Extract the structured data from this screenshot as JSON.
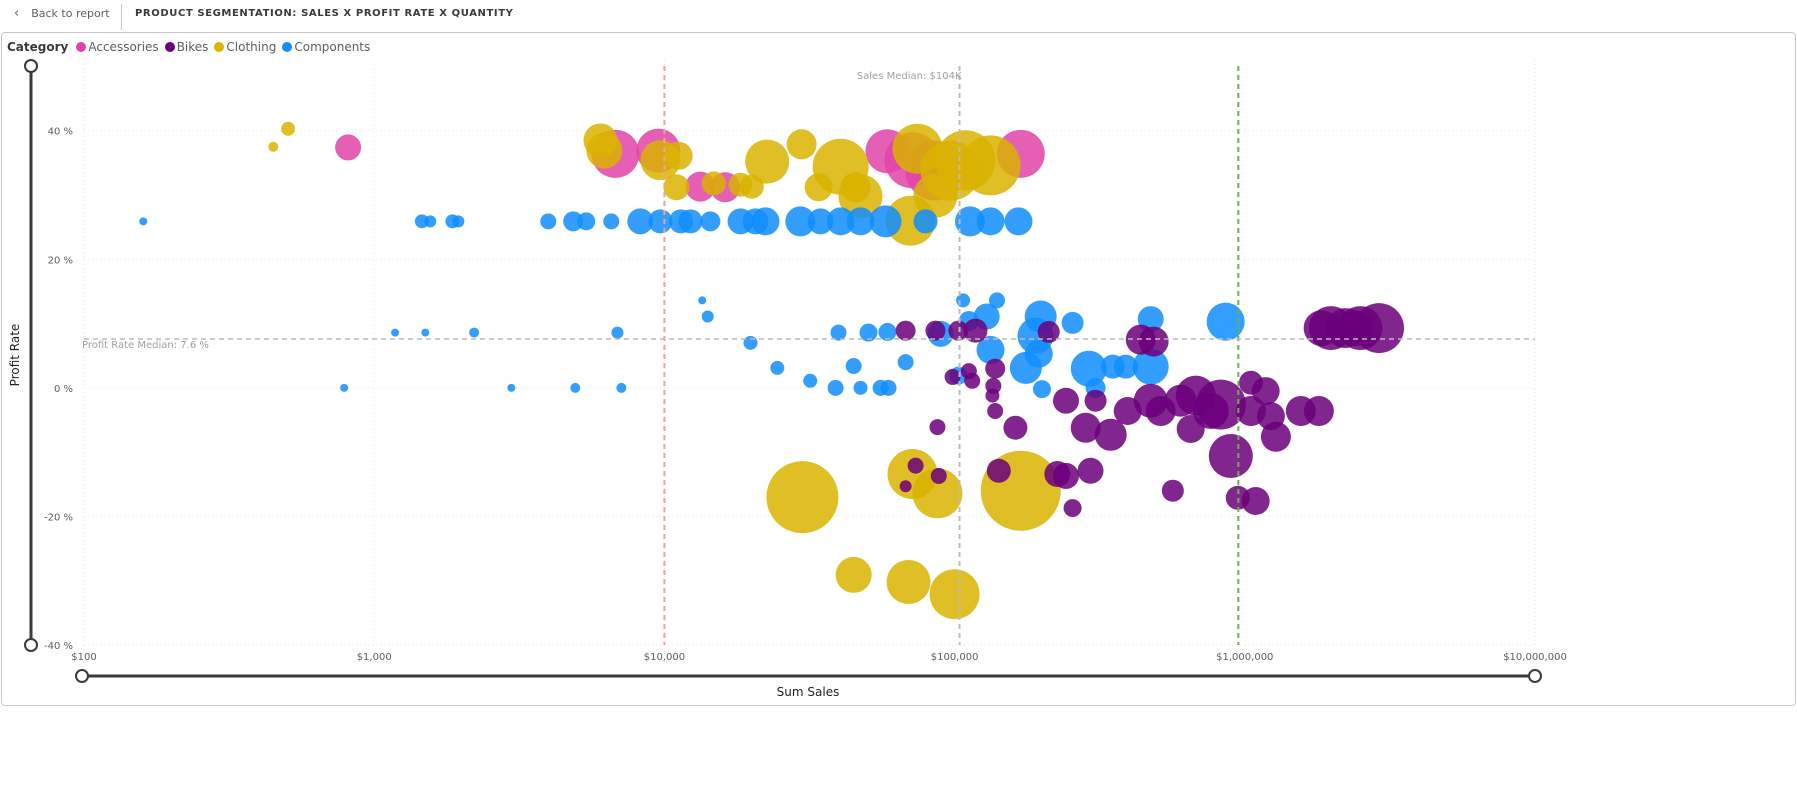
{
  "header": {
    "back_label": "Back to report",
    "back_icon": "chevron-left-icon",
    "title": "PRODUCT SEGMENTATION: SALES X PROFIT RATE X QUANTITY"
  },
  "legend": {
    "title": "Category",
    "items": [
      {
        "label": "Accessories",
        "color": "#E044A7"
      },
      {
        "label": "Bikes",
        "color": "#6B007B"
      },
      {
        "label": "Clothing",
        "color": "#D9B300"
      },
      {
        "label": "Components",
        "color": "#118DFF"
      }
    ]
  },
  "chart_data": {
    "type": "scatter",
    "xlabel": "Sum Sales",
    "ylabel": "Profit Rate",
    "x_scale": "log",
    "xlim": [
      100,
      10000000
    ],
    "ylim": [
      -40,
      51
    ],
    "x_ticks": [
      {
        "v": 100,
        "label": "$100"
      },
      {
        "v": 1000,
        "label": "$1,000"
      },
      {
        "v": 10000,
        "label": "$10,000"
      },
      {
        "v": 100000,
        "label": "$100,000"
      },
      {
        "v": 1000000,
        "label": "$1,000,000"
      },
      {
        "v": 10000000,
        "label": "$10,000,000"
      }
    ],
    "y_ticks": [
      {
        "v": 40,
        "label": "40 %"
      },
      {
        "v": 20,
        "label": "20 %"
      },
      {
        "v": 0,
        "label": "0 %"
      },
      {
        "v": -20,
        "label": "-20 %"
      },
      {
        "v": -40,
        "label": "-40 %"
      }
    ],
    "grid": true,
    "size_field": "Quantity",
    "reference_lines": [
      {
        "axis": "x",
        "value": 10000,
        "color": "#F0A58A",
        "label": ""
      },
      {
        "axis": "x",
        "value": 104000,
        "color": "#BEBBB8",
        "label": "Sales Median: $104K"
      },
      {
        "axis": "x",
        "value": 950000,
        "color": "#6AB04C",
        "label": ""
      },
      {
        "axis": "y",
        "value": 7.6,
        "color": "#BEBBB8",
        "label": "Profit Rate Median: 7.6 %"
      }
    ],
    "point_format": [
      "sales",
      "profit_rate",
      "quantity"
    ],
    "series": [
      {
        "name": "Accessories",
        "color": "#E044A7",
        "points": [
          [
            813,
            37.4,
            169
          ],
          [
            6780,
            36.4,
            576
          ],
          [
            9530,
            36.9,
            484
          ],
          [
            13300,
            31.3,
            225
          ],
          [
            16200,
            31.2,
            225
          ],
          [
            58700,
            36.8,
            484
          ],
          [
            71600,
            35.4,
            784
          ],
          [
            85900,
            33.8,
            900
          ],
          [
            169000,
            36.4,
            576
          ]
        ]
      },
      {
        "name": "Clothing",
        "color": "#D9B300",
        "points": [
          [
            449,
            37.5,
            25
          ],
          [
            505,
            40.3,
            49
          ],
          [
            6020,
            38.5,
            289
          ],
          [
            6210,
            36.9,
            324
          ],
          [
            9690,
            35.4,
            400
          ],
          [
            11200,
            36.1,
            196
          ],
          [
            11000,
            31.2,
            169
          ],
          [
            14800,
            31.8,
            144
          ],
          [
            18300,
            31.6,
            144
          ],
          [
            20000,
            31.3,
            144
          ],
          [
            22600,
            35.2,
            484
          ],
          [
            29700,
            37.9,
            225
          ],
          [
            34000,
            31.2,
            196
          ],
          [
            40500,
            34.4,
            784
          ],
          [
            45600,
            31.2,
            225
          ],
          [
            47400,
            29.8,
            484
          ],
          [
            74500,
            37.2,
            625
          ],
          [
            70500,
            26,
            625
          ],
          [
            85900,
            29.9,
            484
          ],
          [
            96900,
            33.8,
            900
          ],
          [
            109000,
            35.4,
            900
          ],
          [
            133000,
            34.6,
            900
          ],
          [
            29900,
            -17,
            1296
          ],
          [
            71600,
            -13.4,
            625
          ],
          [
            87300,
            -16.4,
            625
          ],
          [
            169000,
            -16,
            1600
          ],
          [
            44900,
            -29.1,
            324
          ],
          [
            69400,
            -30.2,
            484
          ],
          [
            100000,
            -32.1,
            625
          ]
        ]
      },
      {
        "name": "Components",
        "color": "#118DFF",
        "points": [
          [
            160,
            25.9,
            16
          ],
          [
            788,
            0,
            16
          ],
          [
            1180,
            8.6,
            16
          ],
          [
            1500,
            8.6,
            16
          ],
          [
            2210,
            8.6,
            25
          ],
          [
            2970,
            0,
            16
          ],
          [
            4930,
            0,
            25
          ],
          [
            7110,
            0,
            25
          ],
          [
            6890,
            8.6,
            36
          ],
          [
            13500,
            13.6,
            16
          ],
          [
            14100,
            11.1,
            36
          ],
          [
            19800,
            7,
            49
          ],
          [
            24500,
            3.1,
            49
          ],
          [
            31800,
            1.1,
            49
          ],
          [
            1460,
            25.9,
            49
          ],
          [
            1560,
            25.9,
            36
          ],
          [
            1860,
            25.9,
            49
          ],
          [
            1950,
            25.9,
            36
          ],
          [
            3980,
            25.9,
            64
          ],
          [
            4850,
            25.9,
            100
          ],
          [
            5380,
            25.9,
            81
          ],
          [
            6560,
            25.9,
            64
          ],
          [
            8260,
            25.9,
            169
          ],
          [
            9690,
            25.9,
            144
          ],
          [
            11400,
            25.9,
            144
          ],
          [
            12300,
            25.9,
            144
          ],
          [
            14400,
            25.9,
            100
          ],
          [
            18300,
            25.9,
            169
          ],
          [
            20600,
            25.9,
            169
          ],
          [
            22300,
            25.9,
            196
          ],
          [
            29400,
            25.9,
            225
          ],
          [
            34500,
            25.9,
            169
          ],
          [
            40500,
            25.9,
            196
          ],
          [
            47400,
            25.9,
            196
          ],
          [
            57800,
            25.9,
            256
          ],
          [
            79400,
            25.9,
            144
          ],
          [
            113000,
            25.9,
            225
          ],
          [
            133000,
            25.9,
            196
          ],
          [
            166000,
            25.9,
            196
          ],
          [
            39800,
            8.6,
            64
          ],
          [
            50500,
            8.6,
            81
          ],
          [
            58700,
            8.7,
            81
          ],
          [
            44900,
            3.4,
            64
          ],
          [
            38900,
            0,
            64
          ],
          [
            47400,
            0,
            49
          ],
          [
            55600,
            0,
            64
          ],
          [
            59200,
            0,
            64
          ],
          [
            67800,
            4,
            64
          ],
          [
            89500,
            8.4,
            169
          ],
          [
            103000,
            1.9,
            81
          ],
          [
            107000,
            13.6,
            49
          ],
          [
            112000,
            10.4,
            100
          ],
          [
            129000,
            11.1,
            169
          ],
          [
            133000,
            5.9,
            196
          ],
          [
            140000,
            13.6,
            64
          ],
          [
            176000,
            3.1,
            256
          ],
          [
            195000,
            5.3,
            196
          ],
          [
            198000,
            11.1,
            256
          ],
          [
            190000,
            8.1,
            324
          ],
          [
            200000,
            -0.2,
            81
          ],
          [
            255000,
            10.1,
            121
          ],
          [
            290000,
            3,
            324
          ],
          [
            351000,
            3.3,
            144
          ],
          [
            389000,
            3.3,
            144
          ],
          [
            474000,
            3.3,
            324
          ],
          [
            474000,
            10.7,
            169
          ],
          [
            859000,
            10.3,
            361
          ],
          [
            306000,
            0,
            100
          ]
        ]
      },
      {
        "name": "Bikes",
        "color": "#6B007B",
        "points": [
          [
            67800,
            8.9,
            100
          ],
          [
            85900,
            8.9,
            100
          ],
          [
            103000,
            8.9,
            100
          ],
          [
            118000,
            8.9,
            144
          ],
          [
            211000,
            8.7,
            121
          ],
          [
            438000,
            7.5,
            225
          ],
          [
            485000,
            7.2,
            225
          ],
          [
            1840000,
            9.3,
            324
          ],
          [
            2220000,
            9.3,
            400
          ],
          [
            2400000,
            9.3,
            324
          ],
          [
            2500000,
            9.3,
            484
          ],
          [
            2900000,
            9.3,
            625
          ],
          [
            1980000,
            9.3,
            484
          ],
          [
            73400,
            -12.1,
            64
          ],
          [
            67800,
            -15.3,
            36
          ],
          [
            88200,
            -13.7,
            64
          ],
          [
            87300,
            -6.1,
            64
          ],
          [
            98400,
            1.7,
            64
          ],
          [
            112000,
            2.6,
            64
          ],
          [
            115000,
            1.1,
            64
          ],
          [
            136000,
            0.3,
            64
          ],
          [
            138000,
            3,
            100
          ],
          [
            135000,
            -1.2,
            49
          ],
          [
            138000,
            -3.6,
            64
          ],
          [
            142000,
            -12.9,
            144
          ],
          [
            162000,
            -6.2,
            144
          ],
          [
            226000,
            -13.4,
            169
          ],
          [
            242000,
            -13.7,
            169
          ],
          [
            255000,
            -18.7,
            81
          ],
          [
            294000,
            -12.9,
            169
          ],
          [
            242000,
            -2,
            169
          ],
          [
            283000,
            -6.2,
            225
          ],
          [
            306000,
            -2,
            121
          ],
          [
            345000,
            -7.3,
            256
          ],
          [
            395000,
            -3.6,
            196
          ],
          [
            474000,
            -2,
            289
          ],
          [
            513000,
            -3.6,
            225
          ],
          [
            565000,
            -16,
            121
          ],
          [
            601000,
            -2,
            256
          ],
          [
            651000,
            -6.4,
            196
          ],
          [
            678000,
            -1.2,
            400
          ],
          [
            764000,
            -3.6,
            324
          ],
          [
            827000,
            -2.6,
            625
          ],
          [
            895000,
            -10.6,
            484
          ],
          [
            946000,
            -17.1,
            144
          ],
          [
            1090000,
            -17.6,
            196
          ],
          [
            1050000,
            0.8,
            144
          ],
          [
            1180000,
            -0.5,
            196
          ],
          [
            1050000,
            -3.6,
            225
          ],
          [
            1280000,
            -7.6,
            225
          ],
          [
            1230000,
            -4.4,
            196
          ],
          [
            1560000,
            -3.6,
            225
          ],
          [
            1800000,
            -3.6,
            225
          ]
        ]
      }
    ]
  }
}
